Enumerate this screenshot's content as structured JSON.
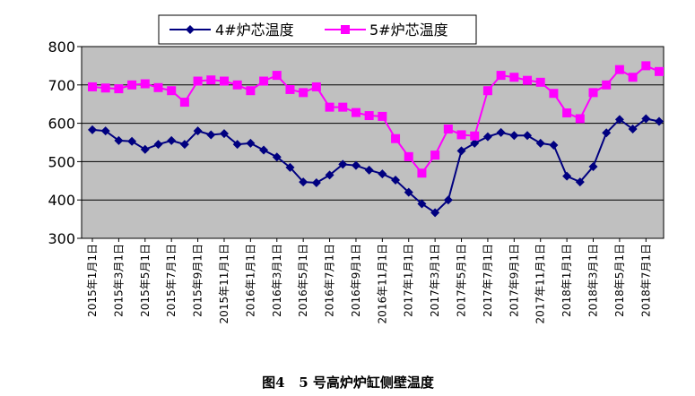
{
  "chart_data": {
    "type": "line",
    "caption": "图4   5 号高炉炉缸侧壁温度",
    "ylim": [
      300,
      800
    ],
    "yticks": [
      300,
      400,
      500,
      600,
      700,
      800
    ],
    "grid": "horizontal",
    "legend_position": "top",
    "x": [
      "2015年1月1日",
      "2015年2月1日",
      "2015年3月1日",
      "2015年4月1日",
      "2015年5月1日",
      "2015年6月1日",
      "2015年7月1日",
      "2015年8月1日",
      "2015年9月1日",
      "2015年10月1日",
      "2015年11月1日",
      "2015年12月1日",
      "2016年1月1日",
      "2016年2月1日",
      "2016年3月1日",
      "2016年4月1日",
      "2016年5月1日",
      "2016年6月1日",
      "2016年7月1日",
      "2016年8月1日",
      "2016年9月1日",
      "2016年10月1日",
      "2016年11月1日",
      "2016年12月1日",
      "2017年1月1日",
      "2017年2月1日",
      "2017年3月1日",
      "2017年4月1日",
      "2017年5月1日",
      "2017年6月1日",
      "2017年7月1日",
      "2017年8月1日",
      "2017年9月1日",
      "2017年10月1日",
      "2017年11月1日",
      "2017年12月1日",
      "2018年1月1日",
      "2018年2月1日",
      "2018年3月1日",
      "2018年4月1日",
      "2018年5月1日",
      "2018年6月1日",
      "2018年7月1日",
      "2018年8月1日"
    ],
    "xticks": [
      "2015年1月1日",
      "2015年3月1日",
      "2015年5月1日",
      "2015年7月1日",
      "2015年9月1日",
      "2015年11月1日",
      "2016年1月1日",
      "2016年3月1日",
      "2016年5月1日",
      "2016年7月1日",
      "2016年9月1日",
      "2016年11月1日",
      "2017年1月1日",
      "2017年3月1日",
      "2017年5月1日",
      "2017年7月1日",
      "2017年9月1日",
      "2017年11月1日",
      "2018年1月1日",
      "2018年3月1日",
      "2018年5月1日",
      "2018年7月1日"
    ],
    "series": [
      {
        "name": "4#炉芯温度",
        "color": "#000080",
        "marker": "diamond",
        "values": [
          583,
          580,
          555,
          553,
          532,
          545,
          555,
          545,
          580,
          570,
          573,
          545,
          548,
          530,
          512,
          485,
          447,
          445,
          465,
          493,
          490,
          478,
          468,
          452,
          420,
          390,
          367,
          400,
          528,
          548,
          565,
          576,
          568,
          568,
          548,
          543,
          462,
          447,
          487,
          575,
          610,
          585,
          612,
          605
        ]
      },
      {
        "name": "5#炉芯温度",
        "color": "#FF00FF",
        "marker": "square",
        "values": [
          695,
          692,
          690,
          700,
          703,
          693,
          685,
          655,
          710,
          713,
          710,
          700,
          685,
          710,
          725,
          688,
          680,
          695,
          642,
          642,
          628,
          620,
          618,
          560,
          513,
          470,
          517,
          585,
          570,
          567,
          685,
          725,
          720,
          712,
          707,
          678,
          627,
          612,
          680,
          700,
          740,
          720,
          750,
          735
        ]
      }
    ]
  }
}
